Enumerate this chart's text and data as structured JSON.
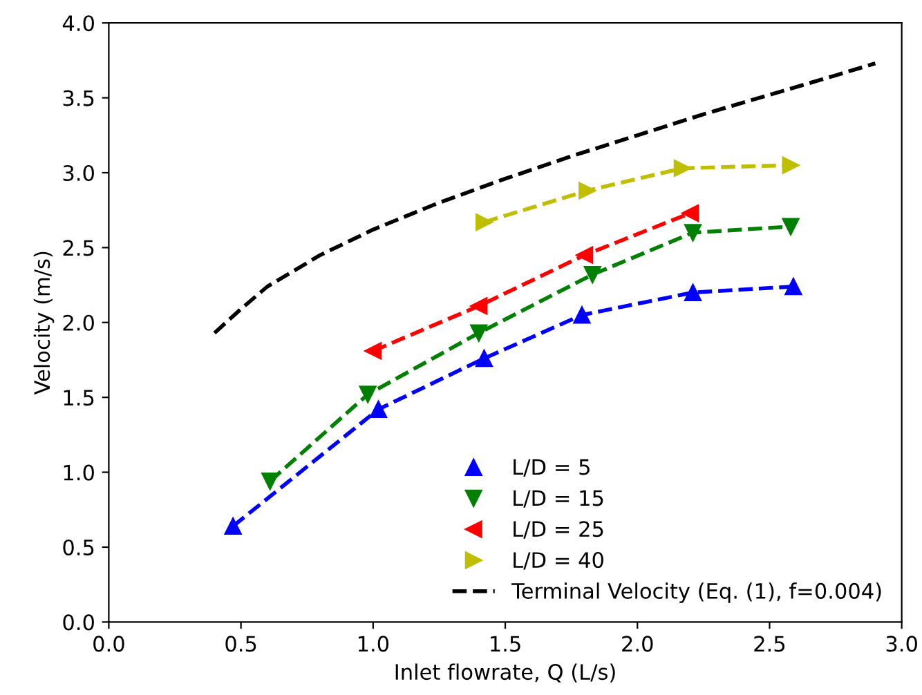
{
  "chart_data": {
    "type": "line",
    "xlabel": "Inlet flowrate, Q (L/s)",
    "ylabel": "Velocity (m/s)",
    "xlim": [
      0.0,
      3.0
    ],
    "xticks": [
      {
        "value": 0,
        "label": "0.0"
      },
      0.5,
      {
        "value": 1,
        "label": "1.0"
      },
      1.5,
      {
        "value": 2,
        "label": "2.0"
      },
      2.5,
      {
        "value": 3,
        "label": "3.0"
      }
    ],
    "ylim": [
      0.0,
      4.0
    ],
    "yticks": [
      {
        "value": 0,
        "label": "0.0"
      },
      0.5,
      {
        "value": 1,
        "label": "1.0"
      },
      1.5,
      {
        "value": 2,
        "label": "2.0"
      },
      2.5,
      {
        "value": 3,
        "label": "3.0"
      },
      3.5,
      {
        "value": 4,
        "label": "4.0"
      }
    ],
    "grid": false,
    "legend": "bottom right",
    "line_style": "dashed",
    "series": [
      {
        "name": "L/D = 5",
        "color": "#0000ff",
        "marker": "triangle_up",
        "x": [
          0.47,
          1.02,
          1.42,
          1.79,
          2.21,
          2.59
        ],
        "values": [
          0.64,
          1.42,
          1.76,
          2.05,
          2.2,
          2.24
        ]
      },
      {
        "name": "L/D = 15",
        "color": "#008000",
        "marker": "triangle_down",
        "x": [
          0.61,
          0.98,
          1.4,
          1.83,
          2.21,
          2.58
        ],
        "values": [
          0.94,
          1.52,
          1.93,
          2.32,
          2.6,
          2.64
        ]
      },
      {
        "name": "L/D = 25",
        "color": "#ff0000",
        "marker": "triangle_left",
        "x": [
          1.0,
          1.4,
          1.8,
          2.2
        ],
        "values": [
          1.81,
          2.11,
          2.45,
          2.73
        ]
      },
      {
        "name": "L/D = 40",
        "color": "#bfbf00",
        "marker": "triangle_right",
        "x": [
          1.42,
          1.81,
          2.17,
          2.58
        ],
        "values": [
          2.67,
          2.88,
          3.03,
          3.05
        ]
      },
      {
        "name": "Terminal Velocity (Eq. (1), f=0.004)",
        "color": "#000000",
        "marker": "none",
        "x": [
          0.4,
          0.5,
          0.6,
          0.8,
          1.0,
          1.25,
          1.5,
          1.75,
          2.0,
          2.25,
          2.5,
          2.75,
          2.9
        ],
        "values": [
          1.93,
          2.09,
          2.24,
          2.45,
          2.62,
          2.8,
          2.96,
          3.11,
          3.25,
          3.39,
          3.52,
          3.65,
          3.73
        ]
      }
    ]
  }
}
